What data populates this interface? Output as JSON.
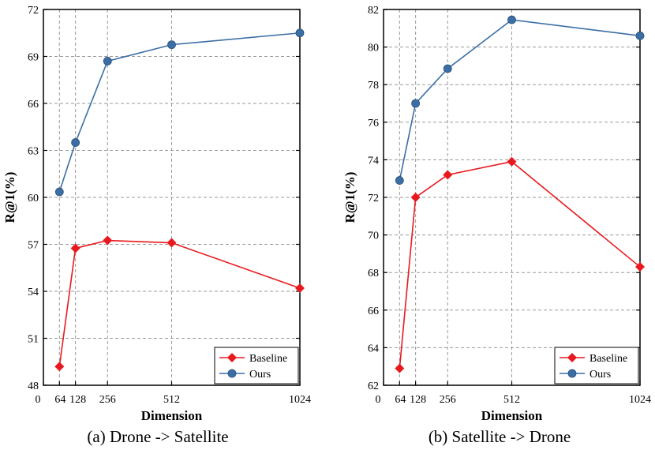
{
  "chart_data": [
    {
      "type": "line",
      "caption": "(a) Drone -> Satellite",
      "xlabel": "Dimension",
      "ylabel": "R@1(%)",
      "xlim": [
        0,
        1024
      ],
      "ylim": [
        48,
        72
      ],
      "x_ticks": [
        0,
        64,
        128,
        256,
        512,
        1024
      ],
      "x_tick_labels": [
        "0",
        "64",
        "128",
        "256",
        "512",
        "1024"
      ],
      "y_ticks": [
        48,
        51,
        54,
        57,
        60,
        63,
        66,
        69,
        72
      ],
      "grid": true,
      "legend_position": "bottom-right",
      "series": [
        {
          "name": "Baseline",
          "color": "#e8191e",
          "marker": "diamond",
          "x": [
            64,
            128,
            256,
            512,
            1024
          ],
          "values": [
            49.2,
            56.75,
            57.25,
            57.1,
            54.2
          ]
        },
        {
          "name": "Ours",
          "color": "#3b6ea5",
          "marker": "circle",
          "x": [
            64,
            128,
            256,
            512,
            1024
          ],
          "values": [
            60.35,
            63.5,
            68.7,
            69.75,
            70.5
          ]
        }
      ]
    },
    {
      "type": "line",
      "caption": "(b) Satellite -> Drone",
      "xlabel": "Dimension",
      "ylabel": "R@1(%)",
      "xlim": [
        0,
        1024
      ],
      "ylim": [
        62,
        82
      ],
      "x_ticks": [
        0,
        64,
        128,
        256,
        512,
        1024
      ],
      "x_tick_labels": [
        "0",
        "64",
        "128",
        "256",
        "512",
        "1024"
      ],
      "y_ticks": [
        62,
        64,
        66,
        68,
        70,
        72,
        74,
        76,
        78,
        80,
        82
      ],
      "grid": true,
      "legend_position": "bottom-right",
      "series": [
        {
          "name": "Baseline",
          "color": "#e8191e",
          "marker": "diamond",
          "x": [
            64,
            128,
            256,
            512,
            1024
          ],
          "values": [
            62.9,
            72.0,
            73.2,
            73.9,
            68.3
          ]
        },
        {
          "name": "Ours",
          "color": "#3b6ea5",
          "marker": "circle",
          "x": [
            64,
            128,
            256,
            512,
            1024
          ],
          "values": [
            72.9,
            77.0,
            78.85,
            81.45,
            80.6
          ]
        }
      ]
    }
  ]
}
